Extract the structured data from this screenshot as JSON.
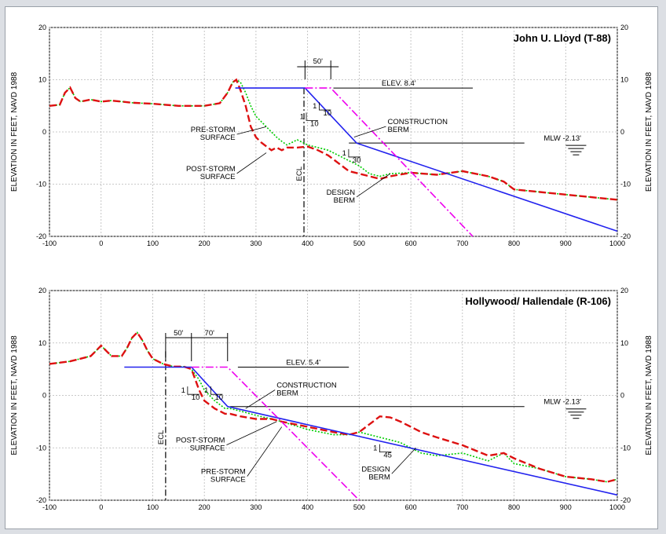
{
  "chart_data": [
    {
      "type": "line",
      "title": "John U. Lloyd (T-88)",
      "ylabel": "ELEVATION IN FEET, NAVD 1988",
      "xlim": [
        -100,
        1000
      ],
      "ylim": [
        -20,
        20
      ],
      "x_ticks": [
        "-100",
        "0",
        "100",
        "200",
        "300",
        "400",
        "500",
        "600",
        "700",
        "800",
        "900",
        "1000"
      ],
      "y_ticks": [
        "20",
        "10",
        "0",
        "-10",
        "-20"
      ],
      "grid": true,
      "series": [
        {
          "name": "PRE-STORM SURFACE",
          "color": "#00cc00",
          "style": "dotted",
          "x": [
            -100,
            -80,
            -70,
            -60,
            -50,
            -40,
            -20,
            0,
            20,
            40,
            60,
            100,
            150,
            200,
            230,
            245,
            255,
            262,
            270,
            280,
            290,
            300,
            310,
            330,
            340,
            350,
            360,
            380,
            400,
            420,
            440,
            460,
            480,
            500,
            520,
            540,
            560,
            600,
            650,
            700,
            750,
            780,
            800,
            850,
            900,
            950,
            1000
          ],
          "y": [
            5,
            5.2,
            7.5,
            8.5,
            6.5,
            5.8,
            6.2,
            5.8,
            6,
            5.8,
            5.6,
            5.4,
            5,
            5,
            5.5,
            7.5,
            9.5,
            10,
            9.5,
            7.5,
            5,
            3,
            2,
            0,
            -1,
            -1.8,
            -2.5,
            -1.5,
            -2.5,
            -3,
            -3.5,
            -4.5,
            -5.5,
            -6.5,
            -8,
            -8.5,
            -8,
            -7.8,
            -8.2,
            -7.5,
            -8.5,
            -9.5,
            -11,
            -11.5,
            -12,
            -12.5,
            -13
          ]
        },
        {
          "name": "POST-STORM SURFACE",
          "color": "#dd1111",
          "style": "dashed",
          "x": [
            -100,
            -80,
            -70,
            -60,
            -50,
            -40,
            -20,
            0,
            20,
            40,
            60,
            100,
            150,
            200,
            230,
            245,
            255,
            262,
            270,
            280,
            290,
            300,
            310,
            330,
            340,
            350,
            360,
            380,
            400,
            420,
            440,
            460,
            480,
            500,
            520,
            540,
            560,
            600,
            650,
            700,
            750,
            780,
            800,
            850,
            900,
            950,
            1000
          ],
          "y": [
            5,
            5.2,
            7.5,
            8.5,
            6.5,
            5.8,
            6.2,
            5.8,
            6,
            5.8,
            5.6,
            5.4,
            5,
            5,
            5.5,
            7.5,
            9.5,
            10,
            8,
            5,
            1,
            -1,
            -2,
            -3.5,
            -3,
            -3.5,
            -3,
            -3,
            -2.8,
            -3.5,
            -4.5,
            -6,
            -7.5,
            -8,
            -8.5,
            -9,
            -8.5,
            -7.8,
            -8.2,
            -7.5,
            -8.5,
            -9.5,
            -11,
            -11.5,
            -12,
            -12.5,
            -13
          ]
        },
        {
          "name": "CONSTRUCTION BERM",
          "color": "#2222ee",
          "style": "solid",
          "x": [
            260,
            395,
            495,
            1000
          ],
          "y": [
            8.4,
            8.4,
            -2.13,
            -19
          ]
        },
        {
          "name": "DESIGN BERM",
          "color": "#ee00ee",
          "style": "dashdot",
          "x": [
            395,
            445,
            720
          ],
          "y": [
            8.4,
            8.4,
            -20
          ]
        }
      ],
      "reference_lines": [
        {
          "label": "MLW -2.13'",
          "y": -2.13,
          "x": [
            480,
            820
          ]
        },
        {
          "label": "ELEV. 8.4'",
          "y": 8.4,
          "x": [
            450,
            720
          ]
        }
      ],
      "ecl": {
        "label": "ECL",
        "x": 393
      },
      "dimension": {
        "label": "50'",
        "x": [
          395,
          445
        ]
      },
      "slopes": [
        {
          "label_rise": "1",
          "label_run": "10"
        },
        {
          "label_rise": "1",
          "label_run": "10"
        },
        {
          "label_rise": "1",
          "label_run": "30"
        }
      ],
      "annotations": [
        "CONSTRUCTION BERM",
        "PRE-STORM SURFACE",
        "POST-STORM SURFACE",
        "DESIGN BERM"
      ]
    },
    {
      "type": "line",
      "title": "Hollywood/ Hallendale (R-106)",
      "ylabel": "ELEVATION IN FEET, NAVD 1988",
      "xlim": [
        -100,
        1000
      ],
      "ylim": [
        -20,
        20
      ],
      "x_ticks": [
        "-100",
        "0",
        "100",
        "200",
        "300",
        "400",
        "500",
        "600",
        "700",
        "800",
        "900",
        "1000"
      ],
      "y_ticks": [
        "20",
        "10",
        "0",
        "-10",
        "-20"
      ],
      "grid": true,
      "series": [
        {
          "name": "PRE-STORM SURFACE",
          "color": "#00cc00",
          "style": "dotted",
          "x": [
            -100,
            -60,
            -40,
            -20,
            -10,
            0,
            10,
            20,
            40,
            50,
            60,
            70,
            80,
            90,
            100,
            110,
            120,
            140,
            160,
            175,
            190,
            200,
            220,
            240,
            250,
            270,
            300,
            330,
            350,
            400,
            450,
            480,
            500,
            540,
            560,
            580,
            600,
            620,
            650,
            700,
            750,
            780,
            800,
            850,
            900,
            950,
            980,
            1000
          ],
          "y": [
            6,
            6.5,
            7,
            7.5,
            8.5,
            9.5,
            8.5,
            7.5,
            7.5,
            9,
            11,
            12,
            10.5,
            8.5,
            7,
            6.5,
            6,
            5.5,
            5.5,
            5,
            3,
            1,
            -1,
            -2.5,
            -2.5,
            -3,
            -3.8,
            -4.5,
            -5,
            -6.5,
            -7.5,
            -7.5,
            -7,
            -8,
            -8.5,
            -9,
            -10,
            -11,
            -11.5,
            -11,
            -12.5,
            -11,
            -13,
            -14,
            -15.5,
            -16,
            -16.5,
            -16
          ]
        },
        {
          "name": "POST-STORM SURFACE",
          "color": "#dd1111",
          "style": "dashed",
          "x": [
            -100,
            -60,
            -40,
            -20,
            -10,
            0,
            10,
            20,
            40,
            50,
            60,
            70,
            80,
            90,
            100,
            110,
            120,
            140,
            160,
            175,
            190,
            200,
            220,
            240,
            250,
            270,
            300,
            330,
            350,
            400,
            450,
            480,
            500,
            540,
            560,
            580,
            600,
            620,
            650,
            700,
            750,
            780,
            800,
            850,
            900,
            950,
            980,
            1000
          ],
          "y": [
            6,
            6.5,
            7,
            7.5,
            8.5,
            9.5,
            8.5,
            7.5,
            7.5,
            9,
            11,
            12,
            10.5,
            8.5,
            7,
            6.5,
            6,
            5.5,
            5.5,
            5,
            1,
            -1,
            -2.5,
            -3.5,
            -3.5,
            -4,
            -4.5,
            -4.5,
            -5,
            -6,
            -7,
            -7.5,
            -7,
            -4,
            -4.2,
            -5,
            -6,
            -7,
            -8,
            -9.5,
            -11.5,
            -11,
            -12,
            -14,
            -15.5,
            -16,
            -16.5,
            -16
          ]
        },
        {
          "name": "CONSTRUCTION BERM",
          "color": "#2222ee",
          "style": "solid",
          "x": [
            45,
            175,
            245,
            1000
          ],
          "y": [
            5.4,
            5.4,
            -2.13,
            -19
          ]
        },
        {
          "name": "DESIGN BERM",
          "color": "#ee00ee",
          "style": "dashdot",
          "x": [
            175,
            245,
            500
          ],
          "y": [
            5.4,
            5.4,
            -20
          ]
        }
      ],
      "reference_lines": [
        {
          "label": "MLW -2.13'",
          "y": -2.13,
          "x": [
            250,
            820
          ]
        },
        {
          "label": "ELEV. 5.4'",
          "y": 5.4,
          "x": [
            265,
            480
          ]
        }
      ],
      "ecl": {
        "label": "ECL",
        "x": 125
      },
      "dimension_labels": [
        "50'",
        "70'"
      ],
      "dimension_ticks": [
        125,
        175,
        245
      ],
      "slopes": [
        {
          "label_rise": "1",
          "label_run": "10"
        },
        {
          "label_rise": "1",
          "label_run": "10"
        },
        {
          "label_rise": "1",
          "label_run": "45"
        }
      ],
      "annotations": [
        "CONSTRUCTION BERM",
        "POST-STORM SURFACE",
        "PRE-STORM SURFACE",
        "DESIGN BERM"
      ]
    }
  ]
}
